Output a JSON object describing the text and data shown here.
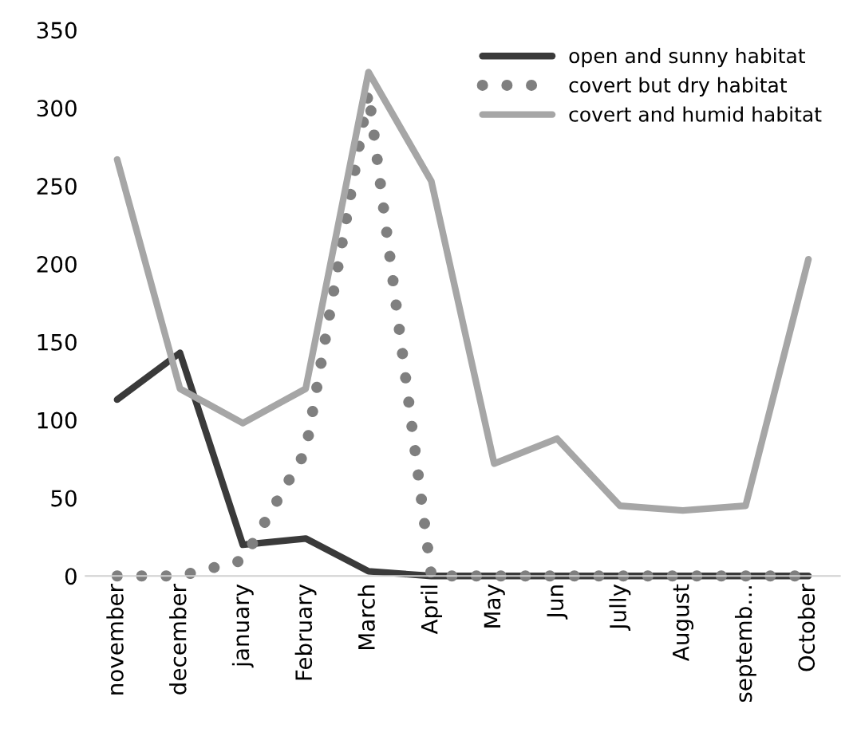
{
  "chart_data": {
    "type": "line",
    "categories": [
      "november",
      "december",
      "january",
      "February",
      "March",
      "April",
      "May",
      "Jun",
      "Jully",
      "August",
      "septemb…",
      "October"
    ],
    "series": [
      {
        "name": "open and sunny habitat",
        "color": "#3a3a3a",
        "line_style": "solid",
        "values": [
          113,
          143,
          20,
          24,
          3,
          0,
          0,
          0,
          0,
          0,
          0,
          0
        ]
      },
      {
        "name": "covert but dry habitat",
        "color": "#7f7f7f",
        "line_style": "dotted",
        "values": [
          0,
          0,
          10,
          80,
          310,
          0,
          0,
          0,
          0,
          0,
          0,
          0
        ]
      },
      {
        "name": "covert and humid habitat",
        "color": "#a6a6a6",
        "line_style": "solid",
        "values": [
          267,
          120,
          98,
          120,
          323,
          253,
          72,
          88,
          45,
          42,
          45,
          203
        ]
      }
    ],
    "ylim": [
      0,
      350
    ],
    "yticks": [
      0,
      50,
      100,
      150,
      200,
      250,
      300,
      350
    ],
    "grid": false,
    "legend": "top right",
    "marker": "none"
  }
}
